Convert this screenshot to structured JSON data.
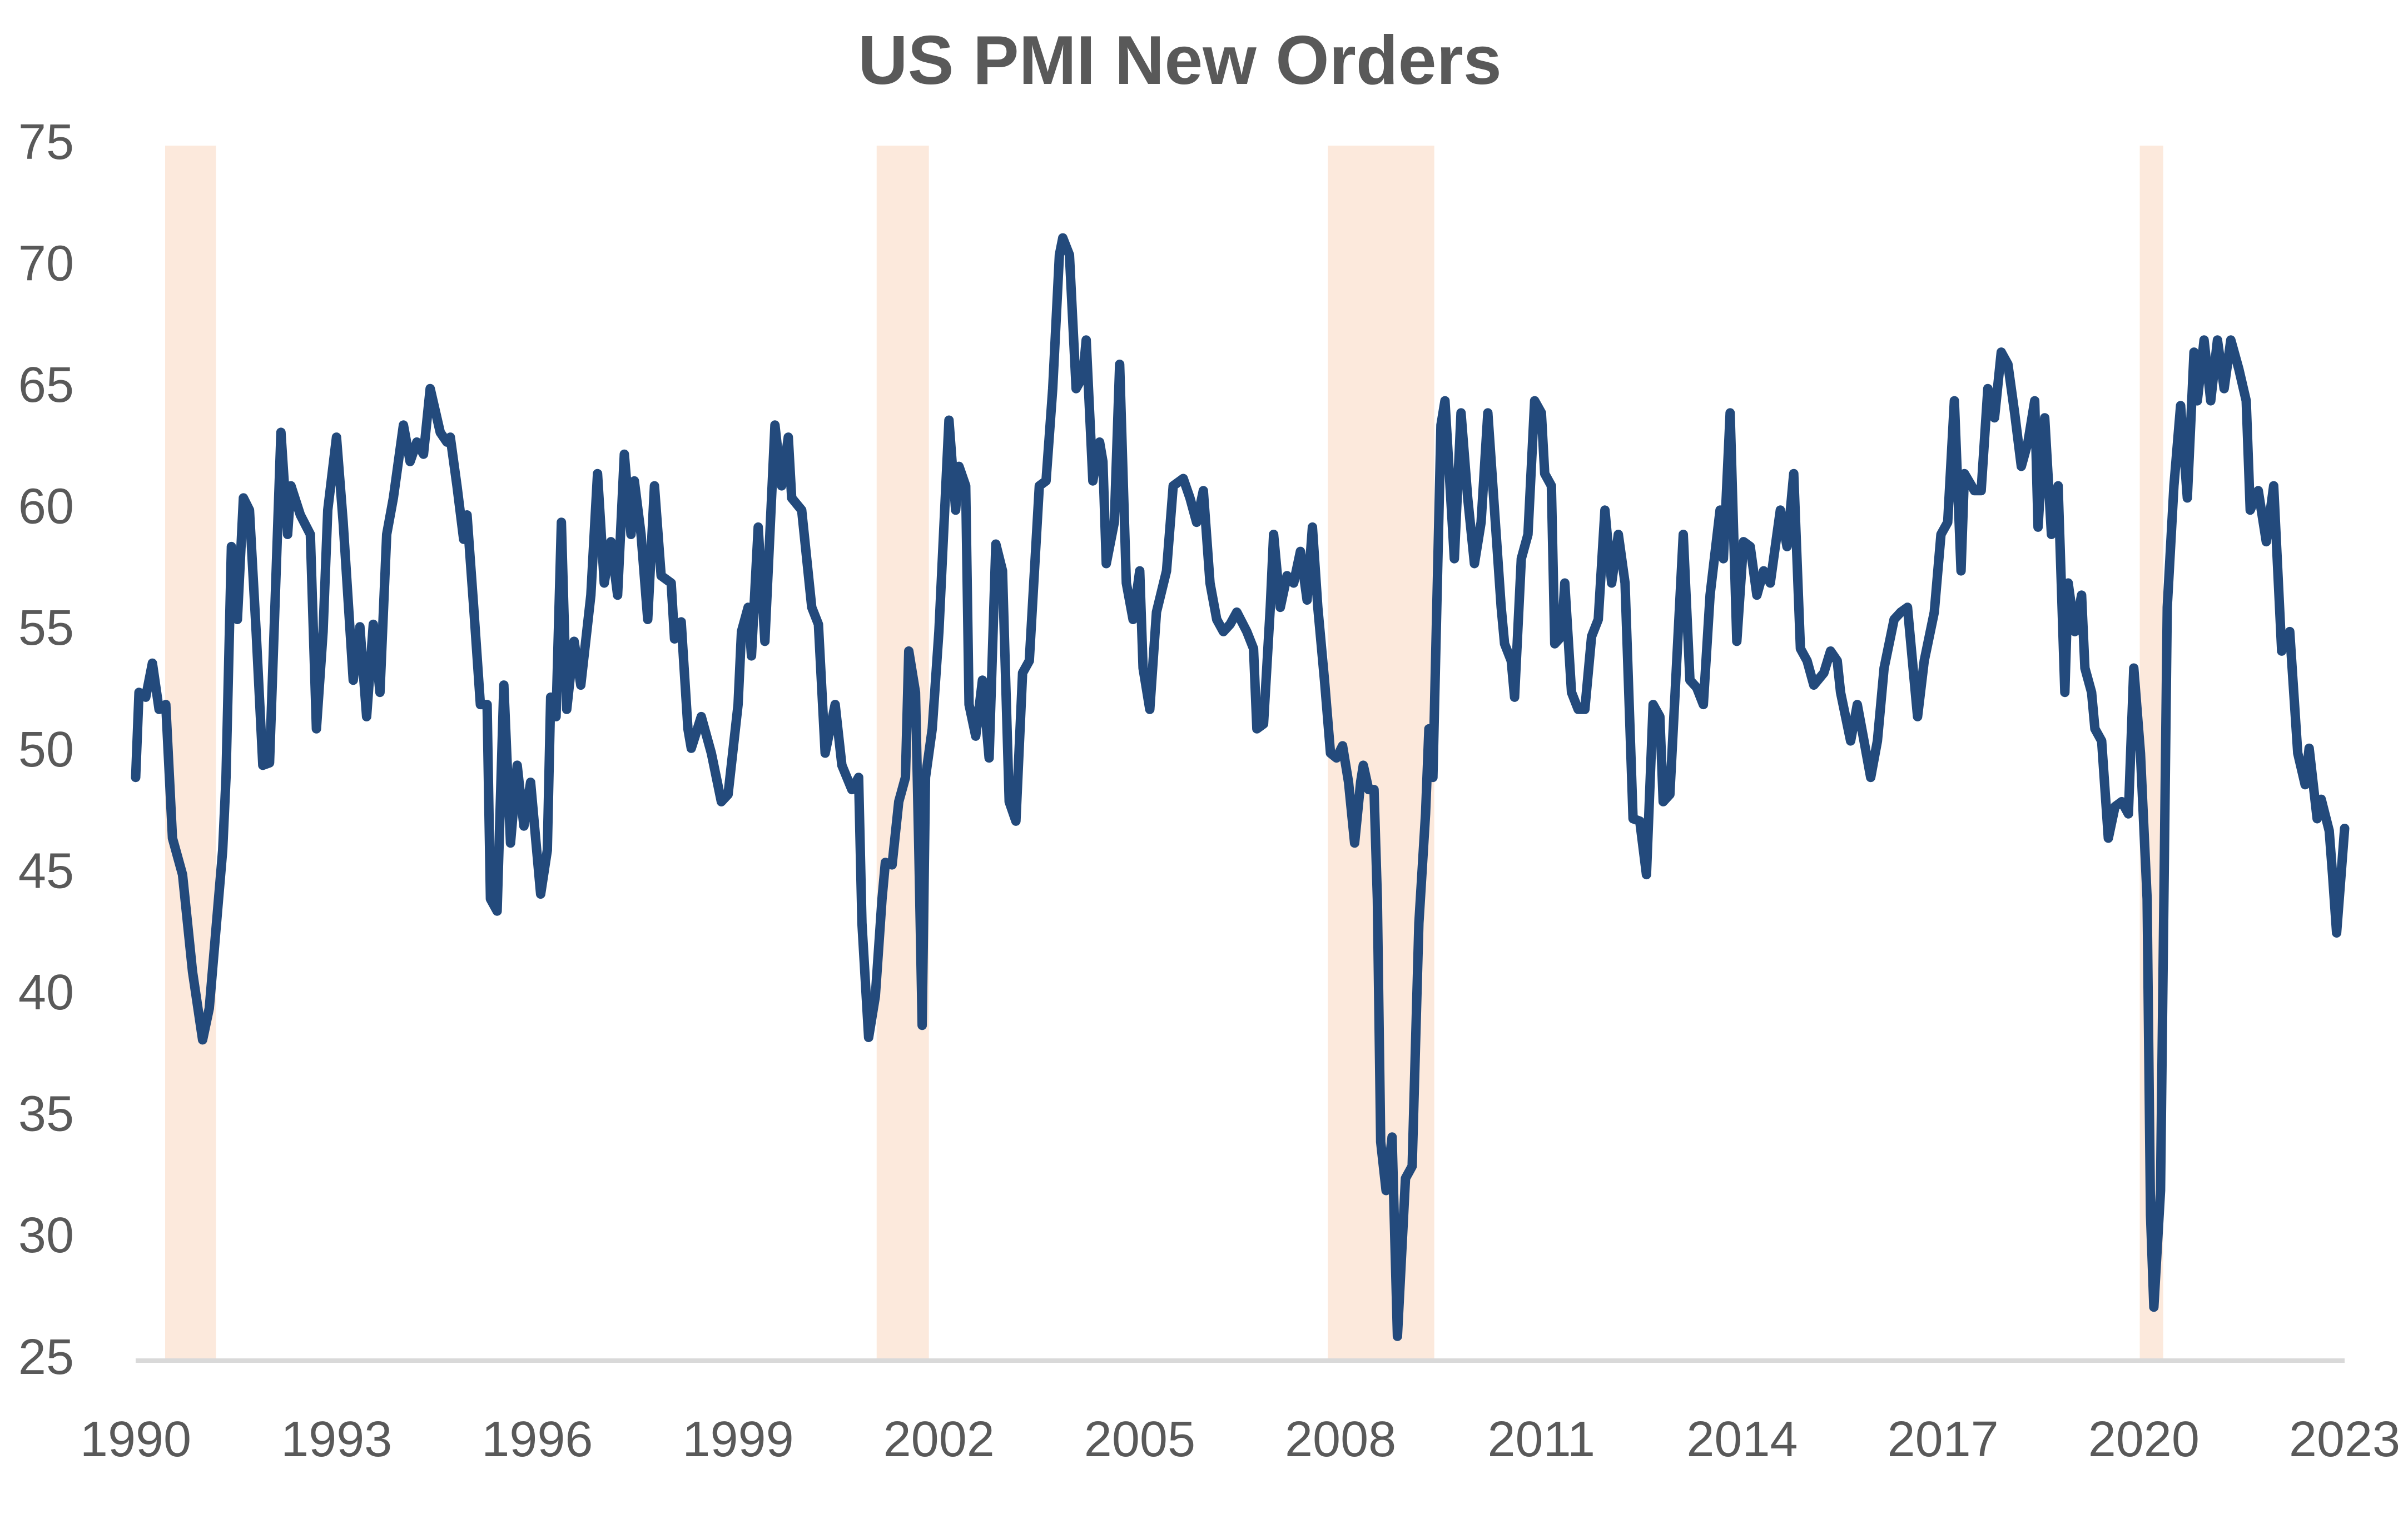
{
  "chart_data": {
    "type": "line",
    "title": "US PMI New Orders",
    "color": "#234a7c",
    "shade_color": "#fce9dc",
    "axis_color": "#d9d9d9",
    "xlim": [
      1990,
      2023
    ],
    "xticks": [
      1990,
      1993,
      1996,
      1999,
      2002,
      2005,
      2008,
      2011,
      2014,
      2017,
      2020,
      2023
    ],
    "ylim": [
      25,
      75
    ],
    "yticks": [
      25,
      30,
      35,
      40,
      45,
      50,
      55,
      60,
      65,
      70,
      75
    ],
    "grid": false,
    "shaded_regions": [
      [
        1990.44,
        1991.2
      ],
      [
        2001.07,
        2001.85
      ],
      [
        2007.81,
        2009.4
      ],
      [
        2019.94,
        2020.29
      ]
    ],
    "x": [
      1990.0,
      1990.05,
      1990.15,
      1990.25,
      1990.35,
      1990.45,
      1990.55,
      1990.7,
      1990.85,
      1991.0,
      1991.1,
      1991.3,
      1991.35,
      1991.43,
      1991.52,
      1991.61,
      1991.7,
      1991.8,
      1991.9,
      1992.0,
      1992.17,
      1992.27,
      1992.32,
      1992.46,
      1992.61,
      1992.7,
      1992.8,
      1992.87,
      1993.0,
      1993.1,
      1993.25,
      1993.35,
      1993.45,
      1993.55,
      1993.65,
      1993.75,
      1993.85,
      1994.0,
      1994.1,
      1994.2,
      1994.3,
      1994.4,
      1994.55,
      1994.65,
      1994.7,
      1994.8,
      1994.9,
      1994.95,
      1995.05,
      1995.15,
      1995.25,
      1995.3,
      1995.4,
      1995.5,
      1995.6,
      1995.7,
      1995.8,
      1995.9,
      1996.05,
      1996.15,
      1996.2,
      1996.28,
      1996.36,
      1996.44,
      1996.55,
      1996.65,
      1996.8,
      1996.9,
      1997.0,
      1997.1,
      1997.2,
      1997.3,
      1997.4,
      1997.45,
      1997.55,
      1997.65,
      1997.75,
      1997.85,
      1998.0,
      1998.05,
      1998.15,
      1998.25,
      1998.3,
      1998.45,
      1998.6,
      1998.75,
      1998.85,
      1999.0,
      1999.05,
      1999.15,
      1999.2,
      1999.3,
      1999.4,
      1999.55,
      1999.65,
      1999.75,
      1999.8,
      1999.95,
      2000.1,
      2000.2,
      2000.3,
      2000.45,
      2000.55,
      2000.7,
      2000.8,
      2000.85,
      2000.95,
      2001.05,
      2001.15,
      2001.2,
      2001.3,
      2001.4,
      2001.5,
      2001.55,
      2001.65,
      2001.7,
      2001.75,
      2001.8,
      2001.9,
      2002.0,
      2002.15,
      2002.25,
      2002.3,
      2002.4,
      2002.45,
      2002.55,
      2002.65,
      2002.75,
      2002.85,
      2002.95,
      2003.05,
      2003.15,
      2003.25,
      2003.35,
      2003.5,
      2003.6,
      2003.7,
      2003.8,
      2003.85,
      2003.95,
      2004.05,
      2004.15,
      2004.2,
      2004.3,
      2004.4,
      2004.45,
      2004.5,
      2004.62,
      2004.7,
      2004.8,
      2004.9,
      2005.0,
      2005.05,
      2005.15,
      2005.25,
      2005.4,
      2005.5,
      2005.65,
      2005.75,
      2005.85,
      2005.95,
      2006.05,
      2006.15,
      2006.25,
      2006.35,
      2006.45,
      2006.6,
      2006.7,
      2006.75,
      2006.85,
      2006.95,
      2007.0,
      2007.1,
      2007.2,
      2007.3,
      2007.4,
      2007.5,
      2007.58,
      2007.66,
      2007.76,
      2007.85,
      2007.94,
      2008.03,
      2008.12,
      2008.21,
      2008.3,
      2008.34,
      2008.42,
      2008.5,
      2008.55,
      2008.6,
      2008.68,
      2008.77,
      2008.85,
      2008.97,
      2009.07,
      2009.17,
      2009.27,
      2009.32,
      2009.38,
      2009.5,
      2009.56,
      2009.7,
      2009.8,
      2009.9,
      2010.0,
      2010.1,
      2010.2,
      2010.3,
      2010.4,
      2010.45,
      2010.55,
      2010.6,
      2010.7,
      2010.8,
      2010.9,
      2011.0,
      2011.05,
      2011.15,
      2011.2,
      2011.3,
      2011.35,
      2011.45,
      2011.55,
      2011.65,
      2011.75,
      2011.85,
      2011.95,
      2012.05,
      2012.15,
      2012.25,
      2012.37,
      2012.47,
      2012.57,
      2012.67,
      2012.77,
      2012.82,
      2012.92,
      2013.12,
      2013.22,
      2013.32,
      2013.42,
      2013.52,
      2013.67,
      2013.72,
      2013.82,
      2013.92,
      2014.02,
      2014.12,
      2014.22,
      2014.32,
      2014.42,
      2014.47,
      2014.57,
      2014.67,
      2014.77,
      2014.87,
      2014.97,
      2015.07,
      2015.22,
      2015.32,
      2015.42,
      2015.47,
      2015.62,
      2015.72,
      2015.82,
      2015.92,
      2016.02,
      2016.12,
      2016.27,
      2016.37,
      2016.47,
      2016.62,
      2016.72,
      2016.87,
      2016.97,
      2017.07,
      2017.17,
      2017.27,
      2017.32,
      2017.47,
      2017.57,
      2017.67,
      2017.77,
      2017.87,
      2017.97,
      2018.07,
      2018.17,
      2018.27,
      2018.37,
      2018.42,
      2018.52,
      2018.62,
      2018.72,
      2018.82,
      2018.87,
      2018.97,
      2019.07,
      2019.12,
      2019.22,
      2019.27,
      2019.37,
      2019.47,
      2019.57,
      2019.67,
      2019.77,
      2019.85,
      2019.95,
      2020.05,
      2020.1,
      2020.15,
      2020.25,
      2020.35,
      2020.45,
      2020.55,
      2020.65,
      2020.75,
      2020.8,
      2020.9,
      2021.0,
      2021.1,
      2021.2,
      2021.3,
      2021.42,
      2021.53,
      2021.59,
      2021.71,
      2021.83,
      2021.94,
      2022.06,
      2022.18,
      2022.3,
      2022.41,
      2022.47,
      2022.59,
      2022.65,
      2022.77,
      2022.82,
      2022.88,
      2023.0
    ],
    "values": [
      49,
      52.5,
      52.3,
      53.7,
      51.8,
      52,
      46.5,
      45,
      41,
      38.2,
      39.5,
      46,
      49,
      58.5,
      55.5,
      60.5,
      60,
      55,
      49.5,
      49.6,
      63.2,
      59,
      61,
      59.8,
      59,
      51,
      55,
      60,
      63,
      59.5,
      53,
      55.2,
      51.5,
      55.3,
      52.5,
      59,
      60.5,
      63.5,
      62,
      62.8,
      62.3,
      65,
      63.2,
      62.8,
      63,
      61,
      58.8,
      59.8,
      56,
      52,
      52,
      44,
      43.5,
      52.8,
      46.3,
      49.5,
      47,
      48.8,
      44.2,
      46,
      52.3,
      51.5,
      59.5,
      51.8,
      54.6,
      52.8,
      56.5,
      61.5,
      57,
      58.7,
      56.5,
      62.3,
      59,
      61.2,
      59,
      55.5,
      61,
      57.3,
      57,
      54.7,
      55.4,
      51,
      50.2,
      51.5,
      50,
      48,
      48.3,
      52,
      55,
      56,
      54,
      59.3,
      54.6,
      63.5,
      61,
      63,
      60.5,
      60,
      56,
      55.3,
      50,
      52,
      49.5,
      48.5,
      49,
      43,
      38.3,
      40,
      44,
      45.5,
      45.4,
      48,
      49,
      54.2,
      52.5,
      46,
      38.8,
      49,
      51,
      55,
      63.7,
      60,
      61.8,
      61,
      52,
      50.7,
      53,
      49.8,
      58.6,
      57.5,
      48,
      47.2,
      53.3,
      53.8,
      61,
      61.2,
      65,
      70.5,
      71.2,
      70.5,
      65,
      65.5,
      67,
      61.2,
      62.8,
      62,
      57.8,
      59.5,
      66,
      57,
      55.5,
      57.5,
      53.5,
      51.8,
      55.8,
      57.5,
      61,
      61.3,
      60.5,
      59.5,
      60.8,
      57,
      55.5,
      55,
      55.3,
      55.8,
      55,
      54.3,
      51,
      51.2,
      56,
      59,
      56,
      57.3,
      57,
      58.3,
      56.3,
      59.3,
      56,
      53,
      50,
      49.8,
      50.3,
      48.8,
      46.3,
      48.8,
      49.5,
      48.5,
      48.5,
      44,
      34,
      32,
      34.2,
      26,
      32.5,
      33,
      43,
      47.5,
      51,
      49,
      63.5,
      64.5,
      58,
      64,
      60.5,
      57.8,
      59.5,
      64,
      60,
      56,
      54.5,
      53.8,
      52.3,
      58,
      59,
      64.5,
      64,
      61.5,
      61,
      54.5,
      54.8,
      57,
      52.5,
      51.8,
      51.8,
      54.8,
      55.5,
      60,
      57,
      59,
      57,
      47.3,
      47.2,
      45,
      52,
      51.5,
      48,
      48.3,
      59,
      53,
      52.7,
      52,
      56.5,
      60,
      58,
      64,
      54.6,
      58.7,
      58.5,
      56.5,
      57.5,
      57,
      58,
      60,
      58.5,
      61.5,
      54.3,
      53.8,
      52.8,
      53.3,
      54.2,
      53.8,
      52.5,
      50.5,
      52,
      50.5,
      49,
      50.5,
      53.5,
      55.5,
      55.8,
      56,
      51.5,
      53.8,
      55.8,
      59,
      59.5,
      64.5,
      57.5,
      61.5,
      60.8,
      60.8,
      65,
      63.8,
      66.5,
      66,
      64,
      61.8,
      62.8,
      64.5,
      59.3,
      63.8,
      59,
      61,
      52.5,
      57,
      55,
      56.5,
      53.5,
      52.5,
      51,
      50.5,
      46.5,
      47.8,
      48,
      47.5,
      53.5,
      50,
      44,
      31,
      27.2,
      32,
      56,
      61,
      64.3,
      60.5,
      66.5,
      64.5,
      67,
      64.5,
      67,
      65,
      67,
      65.8,
      64.5,
      60,
      60.8,
      58.7,
      61,
      54.2,
      55,
      50,
      48.7,
      50.2,
      47.3,
      48.1,
      46.8,
      45,
      42.6,
      46.9
    ]
  }
}
